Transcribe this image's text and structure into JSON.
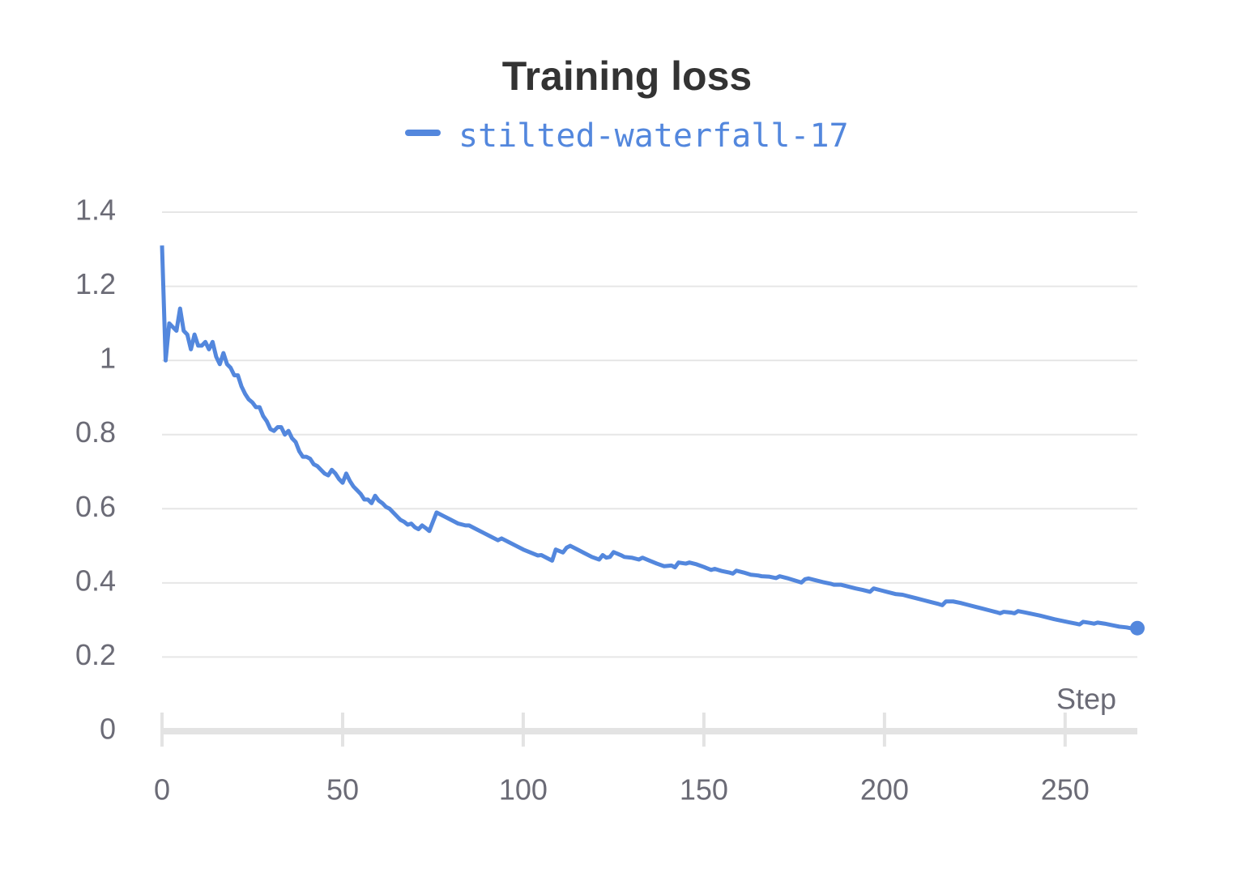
{
  "chart_data": {
    "type": "line",
    "title": "Training loss",
    "xlabel": "Step",
    "x": [
      0,
      1,
      2,
      3,
      4,
      5,
      6,
      7,
      8,
      9,
      10,
      11,
      12,
      13,
      14,
      15,
      16,
      17,
      18,
      19,
      20,
      21,
      22,
      23,
      24,
      25,
      26,
      27,
      28,
      29,
      30,
      31,
      32,
      33,
      34,
      35,
      36,
      37,
      38,
      39,
      40,
      41,
      42,
      43,
      44,
      45,
      46,
      47,
      48,
      49,
      50,
      51,
      52,
      53,
      54,
      55,
      56,
      57,
      58,
      59,
      60,
      61,
      62,
      63,
      64,
      65,
      66,
      67,
      68,
      69,
      70,
      71,
      72,
      73,
      74,
      76,
      78,
      80,
      82,
      84,
      85,
      87,
      89,
      91,
      93,
      94,
      96,
      98,
      100,
      102,
      104,
      105,
      107,
      108,
      109,
      111,
      112,
      113,
      115,
      117,
      119,
      121,
      122,
      123,
      124,
      125,
      127,
      128,
      130,
      132,
      133,
      135,
      137,
      139,
      141,
      142,
      143,
      145,
      146,
      148,
      150,
      152,
      153,
      155,
      157,
      158,
      159,
      161,
      163,
      165,
      166,
      168,
      170,
      171,
      173,
      175,
      177,
      178,
      179,
      181,
      183,
      185,
      186,
      188,
      190,
      192,
      194,
      196,
      197,
      199,
      201,
      203,
      205,
      207,
      209,
      211,
      213,
      215,
      216,
      217,
      219,
      221,
      223,
      225,
      227,
      229,
      231,
      232,
      233,
      235,
      236,
      237,
      239,
      241,
      243,
      245,
      247,
      249,
      251,
      253,
      254,
      255,
      257,
      258,
      259,
      261,
      263,
      265,
      267,
      268,
      270
    ],
    "series": [
      {
        "name": "stilted-waterfall-17",
        "color": "#5387dd",
        "values": [
          1.31,
          1.0,
          1.1,
          1.09,
          1.08,
          1.14,
          1.08,
          1.07,
          1.03,
          1.07,
          1.04,
          1.04,
          1.05,
          1.03,
          1.05,
          1.01,
          0.99,
          1.02,
          0.99,
          0.98,
          0.96,
          0.96,
          0.93,
          0.91,
          0.895,
          0.887,
          0.874,
          0.874,
          0.85,
          0.836,
          0.815,
          0.81,
          0.82,
          0.82,
          0.8,
          0.81,
          0.79,
          0.78,
          0.755,
          0.74,
          0.74,
          0.735,
          0.72,
          0.715,
          0.705,
          0.695,
          0.69,
          0.705,
          0.695,
          0.68,
          0.67,
          0.695,
          0.675,
          0.66,
          0.65,
          0.64,
          0.625,
          0.625,
          0.615,
          0.635,
          0.622,
          0.615,
          0.605,
          0.6,
          0.59,
          0.58,
          0.57,
          0.565,
          0.557,
          0.56,
          0.55,
          0.545,
          0.555,
          0.548,
          0.54,
          0.59,
          0.58,
          0.57,
          0.56,
          0.555,
          0.555,
          0.545,
          0.535,
          0.525,
          0.515,
          0.52,
          0.51,
          0.5,
          0.49,
          0.482,
          0.474,
          0.475,
          0.465,
          0.46,
          0.49,
          0.482,
          0.495,
          0.5,
          0.49,
          0.48,
          0.47,
          0.463,
          0.475,
          0.468,
          0.47,
          0.483,
          0.475,
          0.47,
          0.468,
          0.463,
          0.468,
          0.46,
          0.452,
          0.445,
          0.447,
          0.442,
          0.455,
          0.452,
          0.455,
          0.45,
          0.443,
          0.435,
          0.438,
          0.432,
          0.428,
          0.425,
          0.433,
          0.428,
          0.422,
          0.42,
          0.418,
          0.417,
          0.413,
          0.418,
          0.413,
          0.407,
          0.401,
          0.41,
          0.412,
          0.407,
          0.402,
          0.398,
          0.395,
          0.395,
          0.39,
          0.385,
          0.381,
          0.376,
          0.385,
          0.38,
          0.375,
          0.37,
          0.368,
          0.363,
          0.358,
          0.353,
          0.348,
          0.343,
          0.34,
          0.35,
          0.35,
          0.346,
          0.341,
          0.336,
          0.331,
          0.326,
          0.321,
          0.318,
          0.322,
          0.32,
          0.318,
          0.324,
          0.32,
          0.316,
          0.312,
          0.307,
          0.302,
          0.298,
          0.294,
          0.29,
          0.288,
          0.295,
          0.292,
          0.29,
          0.293,
          0.29,
          0.286,
          0.282,
          0.28,
          0.278,
          0.278
        ]
      }
    ],
    "xlim": [
      0,
      270
    ],
    "ylim": [
      0,
      1.4
    ],
    "xticks": [
      0,
      50,
      100,
      150,
      200,
      250
    ],
    "yticks": [
      0,
      0.2,
      0.4,
      0.6,
      0.8,
      1,
      1.2,
      1.4
    ],
    "grid": true,
    "legend": "top"
  }
}
